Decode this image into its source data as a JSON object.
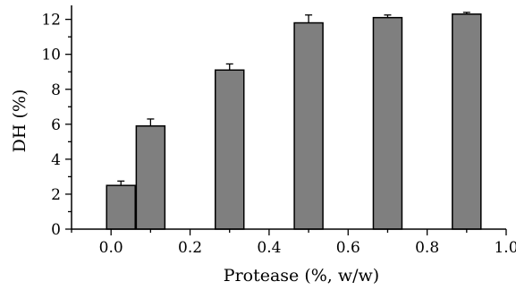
{
  "chart_data": {
    "type": "bar",
    "x": [
      0.025,
      0.1,
      0.3,
      0.5,
      0.7,
      0.9
    ],
    "values": [
      2.5,
      5.9,
      9.1,
      11.8,
      12.1,
      12.3
    ],
    "errors": [
      0.25,
      0.4,
      0.35,
      0.45,
      0.15,
      0.1
    ],
    "xlabel": "Protease (%, w/w)",
    "ylabel": "DH (%)",
    "xlim": [
      -0.1,
      1.0
    ],
    "ylim": [
      0,
      12.8
    ],
    "x_ticks": [
      "0.0",
      "0.2",
      "0.4",
      "0.6",
      "0.8",
      "1.0"
    ],
    "x_tick_values": [
      0.0,
      0.2,
      0.4,
      0.6,
      0.8,
      1.0
    ],
    "y_ticks": [
      "0",
      "2",
      "4",
      "6",
      "8",
      "10",
      "12"
    ],
    "y_tick_values": [
      0,
      2,
      4,
      6,
      8,
      10,
      12
    ],
    "bar_color": "#7f7f7f",
    "grid": false,
    "legend": "none"
  }
}
